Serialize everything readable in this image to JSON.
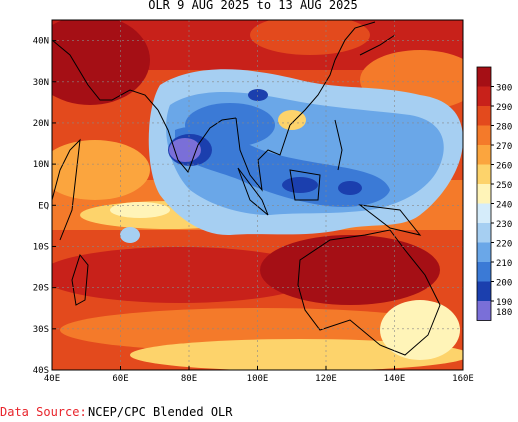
{
  "chart_data": {
    "type": "heatmap",
    "title": "OLR 9 AUG 2025 to 13 AUG 2025",
    "x_ticks": [
      "40E",
      "60E",
      "80E",
      "100E",
      "120E",
      "140E",
      "160E"
    ],
    "y_ticks": [
      "40N",
      "30N",
      "20N",
      "10N",
      "EQ",
      "10S",
      "20S",
      "30S",
      "40S"
    ],
    "xlim": [
      40,
      160
    ],
    "ylim": [
      -40,
      45
    ],
    "colorbar": {
      "labels": [
        "300",
        "290",
        "280",
        "270",
        "260",
        "250",
        "240",
        "230",
        "220",
        "210",
        "200",
        "190",
        "180"
      ],
      "colors": [
        "#a50f15",
        "#c8211a",
        "#e34a1d",
        "#f47a2a",
        "#fba53e",
        "#fdd36b",
        "#fff4b8",
        "#d5ecfa",
        "#a6cff2",
        "#6aa7e8",
        "#3b7ad6",
        "#1b3fae",
        "#7a6fd8"
      ]
    },
    "colors": {
      "land": "#000000",
      "grid": "#888888"
    }
  },
  "source": {
    "label": "Data Source:",
    "value": "NCEP/CPC Blended OLR"
  }
}
